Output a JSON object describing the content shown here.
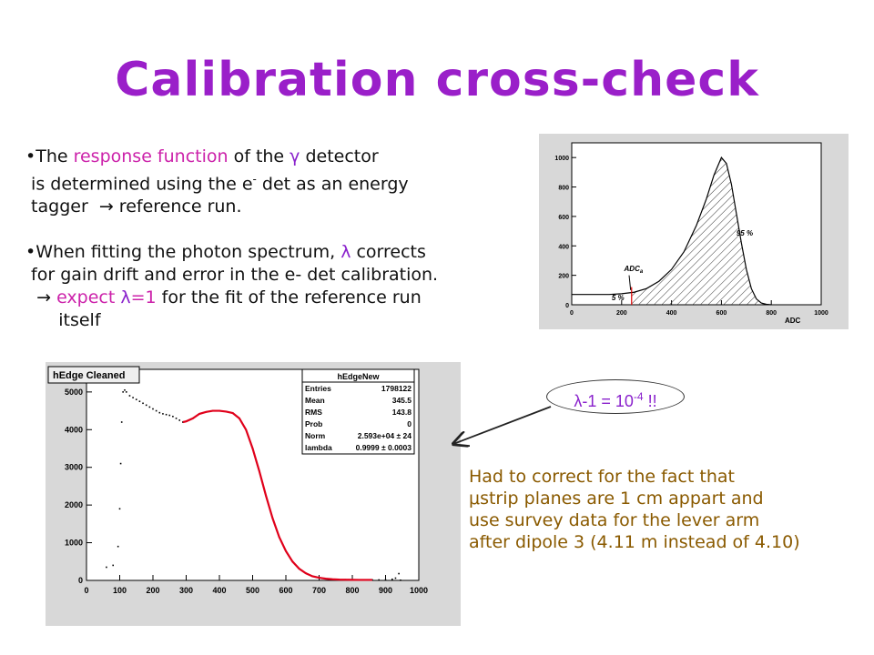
{
  "slide": {
    "title": "Calibration cross-check",
    "bullets": [
      {
        "lines": [
          [
            "•The ",
            {
              "t": "response function",
              "c": "accent"
            },
            " of the ",
            {
              "t": "γ",
              "c": "purple"
            },
            " detector"
          ],
          [
            " is determined using the e",
            {
              "t": "-",
              "sup": true
            },
            " det as an energy"
          ],
          [
            " tagger  ",
            {
              "t": "→",
              "c": ""
            },
            " reference run."
          ]
        ]
      },
      {
        "lines": [
          [
            "•When fitting the photon spectrum, ",
            {
              "t": "λ",
              "c": "purple"
            },
            " corrects"
          ],
          [
            " for gain drift and error in the e- det calibration."
          ],
          [
            "  ",
            {
              "t": "→",
              "c": ""
            },
            " ",
            {
              "t": "expect ",
              "c": "accent"
            },
            {
              "t": "λ",
              "c": "purple"
            },
            {
              "t": "=1",
              "c": "accent"
            },
            " for the fit of the reference run"
          ],
          [
            "      itself"
          ]
        ]
      }
    ],
    "bubble": {
      "prefix": "λ-1 = 10",
      "exp": "-4",
      "suffix": " !!"
    },
    "note_lines": [
      "Had to correct for the fact that",
      "μstrip planes are 1 cm appart and",
      "use survey data for the lever arm",
      "after dipole 3 (4.11 m instead of 4.10)"
    ]
  },
  "chart_data": [
    {
      "type": "area",
      "xlabel": "ADC",
      "ylabel": "",
      "xlim": [
        0,
        1000
      ],
      "ylim": [
        0,
        1100
      ],
      "x_ticks": [
        0,
        200,
        400,
        600,
        800,
        1000
      ],
      "y_ticks": [
        0,
        200,
        400,
        600,
        800,
        1000
      ],
      "annotations": [
        {
          "text": "95 %",
          "x": 660,
          "y": 470
        },
        {
          "text": "5 %",
          "x": 160,
          "y": 30
        },
        {
          "text": "ADC",
          "sub": "a",
          "x": 210,
          "y": 230
        }
      ],
      "cut_x": 240,
      "series": [
        {
          "x": [
            0,
            50,
            100,
            150,
            200,
            250,
            300,
            350,
            400,
            450,
            500,
            540,
            570,
            600,
            620,
            640,
            660,
            680,
            700,
            720,
            740,
            760,
            780,
            800
          ],
          "values": [
            70,
            70,
            70,
            70,
            75,
            85,
            110,
            160,
            240,
            360,
            540,
            720,
            880,
            1000,
            960,
            820,
            620,
            420,
            240,
            110,
            40,
            12,
            3,
            0
          ]
        }
      ]
    },
    {
      "type": "scatter",
      "title": "hEdge Cleaned",
      "xlim": [
        0,
        1000
      ],
      "ylim": [
        0,
        5600
      ],
      "x_ticks": [
        0,
        100,
        200,
        300,
        400,
        500,
        600,
        700,
        800,
        900,
        1000
      ],
      "y_ticks": [
        0,
        1000,
        2000,
        3000,
        4000,
        5000
      ],
      "stats": {
        "title": "hEdgeNew",
        "rows": [
          [
            "Entries",
            "1798122"
          ],
          [
            "Mean",
            "345.5"
          ],
          [
            "RMS",
            "143.8"
          ],
          [
            "Prob",
            "0"
          ],
          [
            "Norm",
            "2.593e+04 ± 24"
          ],
          [
            "lambda",
            "0.9999 ± 0.0003"
          ]
        ]
      },
      "series": [
        {
          "name": "data",
          "x": [
            60,
            80,
            95,
            100,
            103,
            106,
            110,
            115,
            120,
            130,
            140,
            150,
            160,
            170,
            180,
            190,
            200,
            210,
            220,
            230,
            240,
            250,
            260,
            270,
            280,
            290,
            300,
            320,
            340,
            360,
            380,
            400,
            420,
            440,
            460,
            480,
            500,
            520,
            540,
            560,
            580,
            600,
            620,
            640,
            660,
            680,
            700,
            720,
            740,
            760,
            780,
            800,
            820,
            840,
            860,
            880,
            900,
            920,
            930,
            940,
            945
          ],
          "values": [
            350,
            400,
            900,
            1900,
            3100,
            4200,
            5000,
            5050,
            5000,
            4900,
            4850,
            4800,
            4750,
            4700,
            4650,
            4600,
            4550,
            4500,
            4450,
            4420,
            4400,
            4380,
            4350,
            4300,
            4250,
            4200,
            4220,
            4300,
            4420,
            4470,
            4500,
            4500,
            4480,
            4440,
            4300,
            4000,
            3500,
            2900,
            2250,
            1650,
            1150,
            780,
            500,
            310,
            190,
            110,
            70,
            45,
            30,
            22,
            18,
            15,
            14,
            13,
            13,
            12,
            12,
            30,
            60,
            180,
            5
          ]
        },
        {
          "name": "fit",
          "x": [
            290,
            300,
            320,
            340,
            360,
            380,
            400,
            420,
            440,
            460,
            480,
            500,
            520,
            540,
            560,
            580,
            600,
            620,
            640,
            660,
            680,
            700,
            720,
            740,
            760,
            780,
            800,
            820,
            840,
            860
          ],
          "values": [
            4200,
            4220,
            4300,
            4420,
            4470,
            4500,
            4500,
            4480,
            4440,
            4300,
            4000,
            3500,
            2900,
            2250,
            1650,
            1150,
            780,
            500,
            310,
            190,
            110,
            70,
            45,
            30,
            22,
            18,
            15,
            14,
            13,
            13
          ]
        }
      ]
    }
  ]
}
